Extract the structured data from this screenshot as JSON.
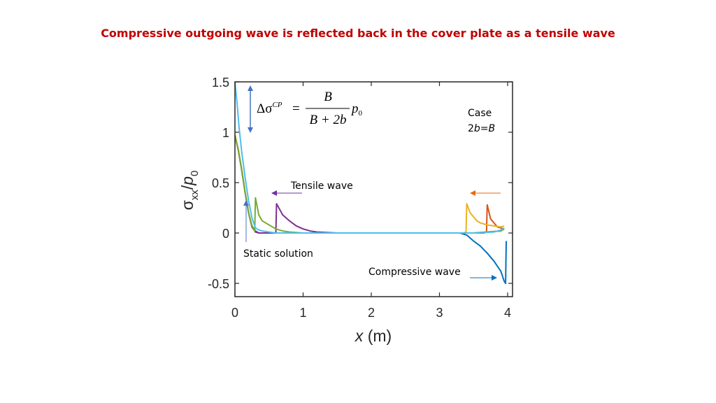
{
  "slide": {
    "title": "Compressive outgoing wave is reflected back in the cover plate as a tensile wave",
    "title_color": "#c00000"
  },
  "chart_data": {
    "type": "line",
    "xlabel": "x (m)",
    "ylabel": "σxx/p0",
    "xlim": [
      0,
      4
    ],
    "ylim": [
      -0.6,
      1.5
    ],
    "xticks": [
      "0",
      "1",
      "2",
      "3",
      "4"
    ],
    "yticks": [
      "1.5",
      "1",
      "0.5",
      "0",
      "-0.5"
    ],
    "grid": false,
    "series": [
      {
        "color": "#0072bd",
        "x": [
          0,
          0.05,
          0.1,
          0.15,
          0.2,
          0.25,
          0.3,
          0.35,
          0.4,
          0.5,
          0.6,
          1.0,
          2.0,
          3.0,
          3.3,
          3.4,
          3.5,
          3.6,
          3.7,
          3.8,
          3.9,
          3.95,
          3.97,
          3.98
        ],
        "y": [
          0.97,
          0.82,
          0.62,
          0.4,
          0.2,
          0.07,
          0.02,
          0.0,
          0.0,
          0.0,
          0.0,
          0.0,
          0.0,
          0.0,
          0.0,
          -0.02,
          -0.08,
          -0.13,
          -0.2,
          -0.28,
          -0.38,
          -0.48,
          -0.5,
          -0.08
        ]
      },
      {
        "color": "#d95319",
        "x": [
          0,
          0.05,
          0.1,
          0.15,
          0.2,
          0.25,
          0.3,
          0.35,
          0.4,
          1.0,
          2.0,
          3.0,
          3.65,
          3.69,
          3.7,
          3.75,
          3.8,
          3.85,
          3.9,
          3.95
        ],
        "y": [
          0.97,
          0.82,
          0.62,
          0.4,
          0.2,
          0.06,
          0.01,
          0.0,
          0.0,
          0.0,
          0.0,
          0.0,
          0.0,
          0.01,
          0.28,
          0.14,
          0.1,
          0.06,
          0.05,
          0.04
        ]
      },
      {
        "color": "#edb120",
        "x": [
          0,
          0.05,
          0.1,
          0.15,
          0.2,
          0.25,
          0.3,
          0.35,
          0.4,
          1.0,
          2.0,
          3.0,
          3.35,
          3.39,
          3.4,
          3.45,
          3.5,
          3.55,
          3.6,
          3.7,
          3.8,
          3.9,
          3.95
        ],
        "y": [
          0.97,
          0.82,
          0.62,
          0.4,
          0.2,
          0.06,
          0.01,
          0.0,
          0.0,
          0.0,
          0.0,
          0.0,
          0.0,
          0.01,
          0.29,
          0.2,
          0.16,
          0.12,
          0.1,
          0.08,
          0.07,
          0.06,
          0.07
        ]
      },
      {
        "color": "#7e2f8e",
        "x": [
          0,
          0.05,
          0.1,
          0.15,
          0.2,
          0.25,
          0.3,
          0.35,
          0.4,
          0.5,
          0.55,
          0.6,
          0.61,
          0.7,
          0.8,
          0.9,
          1.0,
          1.1,
          1.2,
          1.5,
          2.0,
          3.0,
          3.5,
          3.9,
          3.95
        ],
        "y": [
          0.97,
          0.82,
          0.62,
          0.4,
          0.2,
          0.06,
          0.01,
          0.0,
          0.0,
          0.0,
          0.0,
          0.0,
          0.29,
          0.18,
          0.12,
          0.07,
          0.04,
          0.02,
          0.01,
          0.0,
          0.0,
          0.0,
          0.0,
          0.02,
          0.04
        ]
      },
      {
        "color": "#77ac30",
        "x": [
          0,
          0.05,
          0.1,
          0.15,
          0.2,
          0.25,
          0.29,
          0.3,
          0.35,
          0.4,
          0.5,
          0.6,
          0.7,
          0.8,
          1.0,
          1.2,
          2.0,
          3.0,
          3.5,
          3.9,
          3.95
        ],
        "y": [
          0.97,
          0.82,
          0.62,
          0.4,
          0.2,
          0.07,
          0.02,
          0.35,
          0.18,
          0.12,
          0.08,
          0.04,
          0.02,
          0.01,
          0.0,
          0.0,
          0.0,
          0.0,
          0.0,
          0.02,
          0.04
        ]
      },
      {
        "color": "#4dbeee",
        "x": [
          0,
          0.03,
          0.06,
          0.1,
          0.15,
          0.2,
          0.25,
          0.3,
          0.35,
          0.4,
          0.5,
          0.6,
          0.8,
          1.0,
          2.0,
          3.0,
          3.5,
          3.8,
          3.9,
          3.95
        ],
        "y": [
          1.5,
          1.3,
          1.05,
          0.8,
          0.55,
          0.32,
          0.15,
          0.05,
          0.03,
          0.02,
          0.01,
          0.0,
          0.0,
          0.0,
          0.0,
          0.0,
          0.0,
          0.01,
          0.03,
          0.05
        ]
      }
    ],
    "annotations": {
      "case_line1": "Case",
      "case_line2": "2b=B",
      "tensile_wave": "Tensile wave",
      "static_solution": "Static solution",
      "compressive_wave": "Compressive wave",
      "formula_lhs": "Δσ",
      "formula_sup": "CP",
      "formula_eq": "=",
      "formula_num": "B",
      "formula_den": "B + 2b",
      "formula_p": "p",
      "formula_p_sub": "0"
    },
    "arrow_colors": {
      "delta": "#4472c4",
      "tensile": "#7030a0",
      "orange": "#e46c0a",
      "static": "#4472c4",
      "compressive": "#0070c0"
    }
  }
}
